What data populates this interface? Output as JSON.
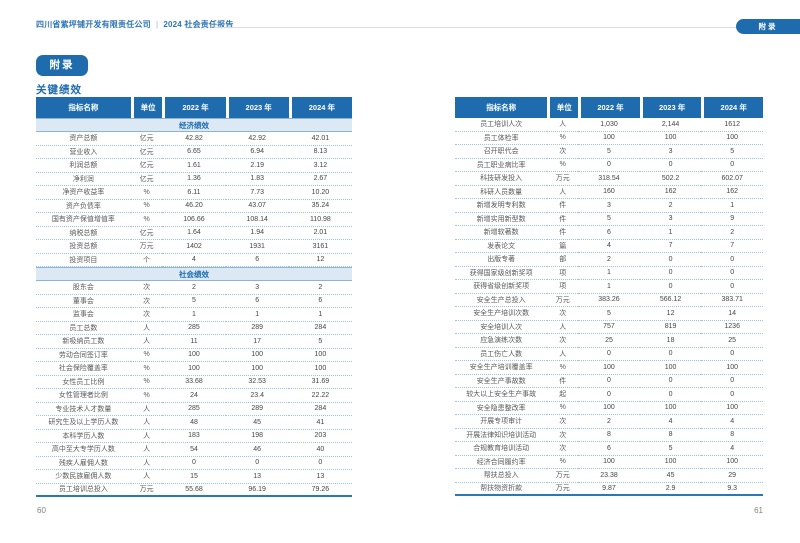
{
  "doc_header": {
    "company": "四川省紫坪铺开发有限责任公司",
    "pipe": "|",
    "report": "2024 社会责任报告",
    "corner_tab": "附录"
  },
  "appendix": {
    "badge": "附录",
    "subtitle": "关键绩效"
  },
  "footer": {
    "left_page": "60",
    "right_page": "61"
  },
  "colors": {
    "accent": "#1e6cae",
    "section_band": "#dce9f5",
    "row_divider": "#9cc3e5",
    "header_text": "#ffffff",
    "body_text": "#595959",
    "page_number": "#808080"
  },
  "tables": [
    {
      "id": "left",
      "headers": [
        "指标名称",
        "单位",
        "2022 年",
        "2023 年",
        "2024 年"
      ],
      "groups": [
        {
          "section": "经济绩效",
          "rows": [
            [
              "资产总额",
              "亿元",
              "42.82",
              "42.92",
              "42.01"
            ],
            [
              "营业收入",
              "亿元",
              "6.65",
              "6.94",
              "8.13"
            ],
            [
              "利润总额",
              "亿元",
              "1.61",
              "2.19",
              "3.12"
            ],
            [
              "净利润",
              "亿元",
              "1.36",
              "1.83",
              "2.67"
            ],
            [
              "净资产收益率",
              "%",
              "6.11",
              "7.73",
              "10.20"
            ],
            [
              "资产负债率",
              "%",
              "46.20",
              "43.07",
              "35.24"
            ],
            [
              "国有资产保值增值率",
              "%",
              "106.66",
              "108.14",
              "110.98"
            ],
            [
              "纳税总额",
              "亿元",
              "1.64",
              "1.94",
              "2.01"
            ],
            [
              "投资总额",
              "万元",
              "1402",
              "1931",
              "3161"
            ],
            [
              "投资项目",
              "个",
              "4",
              "6",
              "12"
            ]
          ]
        },
        {
          "section": "社会绩效",
          "rows": [
            [
              "股东会",
              "次",
              "2",
              "3",
              "2"
            ],
            [
              "董事会",
              "次",
              "5",
              "6",
              "6"
            ],
            [
              "监事会",
              "次",
              "1",
              "1",
              "1"
            ],
            [
              "员工总数",
              "人",
              "285",
              "289",
              "284"
            ],
            [
              "新吸纳员工数",
              "人",
              "11",
              "17",
              "5"
            ],
            [
              "劳动合同签订率",
              "%",
              "100",
              "100",
              "100"
            ],
            [
              "社会保险覆盖率",
              "%",
              "100",
              "100",
              "100"
            ],
            [
              "女性员工比例",
              "%",
              "33.68",
              "32.53",
              "31.69"
            ],
            [
              "女性管理者比例",
              "%",
              "24",
              "23.4",
              "22.22"
            ],
            [
              "专业技术人才数量",
              "人",
              "285",
              "289",
              "284"
            ],
            [
              "研究生及以上学历人数",
              "人",
              "48",
              "45",
              "41"
            ],
            [
              "本科学历人数",
              "人",
              "183",
              "198",
              "203"
            ],
            [
              "高中至大专学历人数",
              "人",
              "54",
              "46",
              "40"
            ],
            [
              "残疾人雇佣人数",
              "人",
              "0",
              "0",
              "0"
            ],
            [
              "少数民族雇佣人数",
              "人",
              "15",
              "13",
              "13"
            ],
            [
              "员工培训总投入",
              "万元",
              "55.68",
              "96.19",
              "79.26"
            ]
          ]
        }
      ]
    },
    {
      "id": "right",
      "headers": [
        "指标名称",
        "单位",
        "2022 年",
        "2023 年",
        "2024 年"
      ],
      "groups": [
        {
          "section": null,
          "rows": [
            [
              "员工培训人次",
              "人",
              "1,030",
              "2,144",
              "1612"
            ],
            [
              "员工体检率",
              "%",
              "100",
              "100",
              "100"
            ],
            [
              "召开职代会",
              "次",
              "5",
              "3",
              "5"
            ],
            [
              "员工职业病比率",
              "%",
              "0",
              "0",
              "0"
            ],
            [
              "科技研发投入",
              "万元",
              "318.54",
              "502.2",
              "602.07"
            ],
            [
              "科研人员数量",
              "人",
              "160",
              "162",
              "162"
            ],
            [
              "新增发明专利数",
              "件",
              "3",
              "2",
              "1"
            ],
            [
              "新增实用新型数",
              "件",
              "5",
              "3",
              "9"
            ],
            [
              "新增软著数",
              "件",
              "6",
              "1",
              "2"
            ],
            [
              "发表论文",
              "篇",
              "4",
              "7",
              "7"
            ],
            [
              "出版专著",
              "部",
              "2",
              "0",
              "0"
            ],
            [
              "获得国家级创新奖项",
              "项",
              "1",
              "0",
              "0"
            ],
            [
              "获得省级创新奖项",
              "项",
              "1",
              "0",
              "0"
            ],
            [
              "安全生产总投入",
              "万元",
              "383.26",
              "566.12",
              "383.71"
            ],
            [
              "安全生产培训次数",
              "次",
              "5",
              "12",
              "14"
            ],
            [
              "安全培训人次",
              "人",
              "757",
              "819",
              "1236"
            ],
            [
              "应急演练次数",
              "次",
              "25",
              "18",
              "25"
            ],
            [
              "员工伤亡人数",
              "人",
              "0",
              "0",
              "0"
            ],
            [
              "安全生产培训覆盖率",
              "%",
              "100",
              "100",
              "100"
            ],
            [
              "安全生产事故数",
              "件",
              "0",
              "0",
              "0"
            ],
            [
              "较大以上安全生产事故",
              "起",
              "0",
              "0",
              "0"
            ],
            [
              "安全隐患整改率",
              "%",
              "100",
              "100",
              "100"
            ],
            [
              "开展专项审计",
              "次",
              "2",
              "4",
              "4"
            ],
            [
              "开展法律知识培训活动",
              "次",
              "8",
              "8",
              "8"
            ],
            [
              "合规教育培训活动",
              "次",
              "6",
              "5",
              "4"
            ],
            [
              "经济合同履约率",
              "%",
              "100",
              "100",
              "100"
            ],
            [
              "帮扶总投入",
              "万元",
              "23.38",
              "45",
              "29"
            ],
            [
              "帮扶物资折款",
              "万元",
              "9.87",
              "2.9",
              "9.3"
            ]
          ]
        }
      ]
    }
  ]
}
